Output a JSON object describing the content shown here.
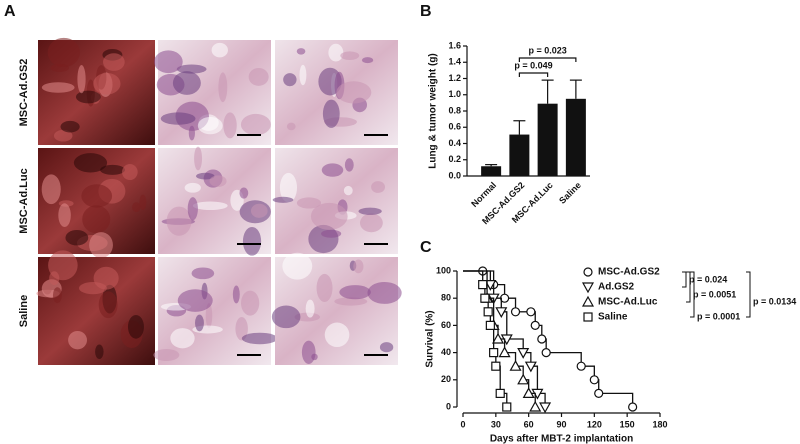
{
  "panels": {
    "a": "A",
    "b": "B",
    "c": "C"
  },
  "row_labels": [
    "MSC-Ad.GS2",
    "MSC-Ad.Luc",
    "Saline"
  ],
  "chart_data": [
    {
      "type": "bar",
      "ylabel": "Lung & tumor weight (g)",
      "categories": [
        "Normal",
        "MSC-Ad.GS2",
        "MSC-Ad.Luc",
        "Saline"
      ],
      "values": [
        0.12,
        0.51,
        0.89,
        0.95
      ],
      "errors": [
        0.02,
        0.17,
        0.29,
        0.23
      ],
      "color": "#111111",
      "ylim": [
        0,
        1.6
      ],
      "yticks": [
        {
          "value": 0,
          "label": "0.0"
        },
        {
          "value": 0.2,
          "label": "0.2"
        },
        {
          "value": 0.4,
          "label": "0.4"
        },
        {
          "value": 0.6,
          "label": "0.6"
        },
        {
          "value": 0.8,
          "label": "0.8"
        },
        {
          "value": 1,
          "label": "1.0"
        },
        {
          "value": 1.2,
          "label": "1.2"
        },
        {
          "value": 1.4,
          "label": "1.4"
        },
        {
          "value": 1.6,
          "label": "1.6"
        }
      ],
      "annotations": [
        "p = 0.049",
        "p = 0.023"
      ]
    },
    {
      "type": "step",
      "xlabel": "Days after MBT-2 implantation",
      "ylabel": "Survival (%)",
      "xlim": [
        0,
        180
      ],
      "xticks": [
        0,
        30,
        60,
        90,
        120,
        150,
        180
      ],
      "ylim": [
        0,
        100
      ],
      "yticks": [
        0,
        20,
        40,
        60,
        80,
        100
      ],
      "color": "#111111",
      "series": [
        {
          "name": "MSC-Ad.GS2",
          "marker": "circle",
          "x": [
            18,
            28,
            38,
            48,
            62,
            66,
            72,
            76,
            108,
            120,
            124,
            155
          ],
          "values": [
            100,
            90,
            80,
            70,
            70,
            60,
            50,
            40,
            30,
            20,
            10,
            0
          ]
        },
        {
          "name": "Ad.GS2",
          "marker": "triangle-down",
          "x": [
            25,
            28,
            35,
            40,
            55,
            62,
            68,
            75
          ],
          "values": [
            90,
            80,
            70,
            50,
            40,
            30,
            10,
            0
          ]
        },
        {
          "name": "MSC-Ad.Luc",
          "marker": "triangle-up",
          "x": [
            22,
            28,
            32,
            38,
            48,
            55,
            60,
            66
          ],
          "values": [
            80,
            60,
            50,
            40,
            30,
            20,
            10,
            0
          ]
        },
        {
          "name": "Saline",
          "marker": "square",
          "x": [
            18,
            20,
            23,
            25,
            28,
            30,
            34,
            40
          ],
          "values": [
            90,
            80,
            70,
            60,
            40,
            30,
            10,
            0
          ]
        }
      ],
      "annotations": [
        "p = 0.024",
        "p = 0.0051",
        "p = 0.0001",
        "p = 0.0134"
      ]
    }
  ]
}
